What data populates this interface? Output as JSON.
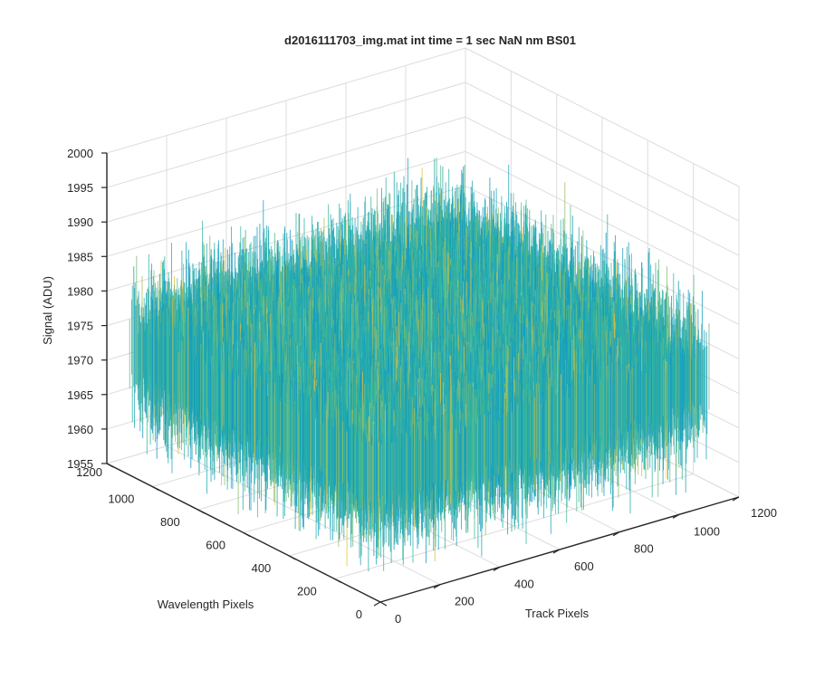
{
  "chart_data": {
    "type": "surface3d",
    "title": "d2016111703_img.mat int time = 1 sec  NaN nm BS01",
    "xlabel": "Track Pixels",
    "ylabel": "Wavelength Pixels",
    "zlabel": "Signal (ADU)",
    "x_ticks": [
      "0",
      "200",
      "400",
      "600",
      "800",
      "1000",
      "1200"
    ],
    "y_ticks": [
      "0",
      "200",
      "400",
      "600",
      "800",
      "1000",
      "1200"
    ],
    "z_ticks": [
      "1955",
      "1960",
      "1965",
      "1970",
      "1975",
      "1980",
      "1985",
      "1990",
      "1995",
      "2000"
    ],
    "xlim": [
      0,
      1200
    ],
    "ylim": [
      0,
      1200
    ],
    "zlim": [
      1955,
      2000
    ],
    "grid": true,
    "colormap": "parula",
    "surface": {
      "x_range": [
        0,
        1100
      ],
      "y_range": [
        0,
        1100
      ],
      "z_mean": 1973,
      "z_min": 1957,
      "z_max": 1992,
      "description_note": "dense noisy surface"
    },
    "colors": {
      "low": "#0f96c8",
      "mid": "#32b7a0",
      "high": "#e8c23a",
      "axis": "#262626",
      "grid": "#dcdcdc"
    }
  }
}
